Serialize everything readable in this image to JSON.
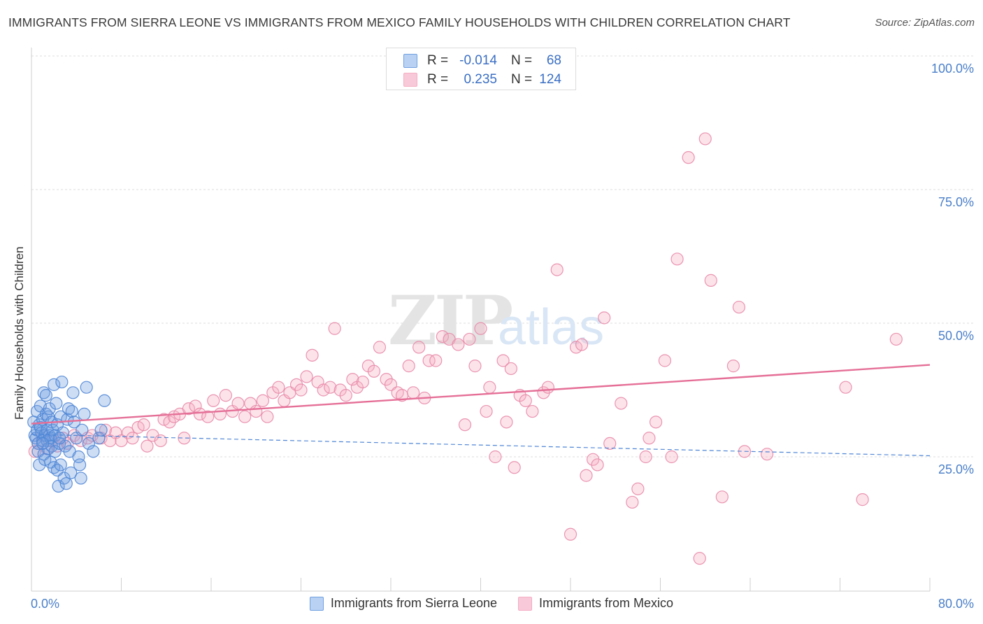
{
  "title": "IMMIGRANTS FROM SIERRA LEONE VS IMMIGRANTS FROM MEXICO FAMILY HOUSEHOLDS WITH CHILDREN CORRELATION CHART",
  "source": "Source: ZipAtlas.com",
  "watermark": {
    "zip": "ZIP",
    "atlas": "atlas"
  },
  "stats": {
    "row1": {
      "r_label": "R =",
      "r_value": "-0.014",
      "n_label": "N =",
      "n_value": "68"
    },
    "row2": {
      "r_label": "R =",
      "r_value": "0.235",
      "n_label": "N =",
      "n_value": "124"
    }
  },
  "chart_data": {
    "type": "scatter",
    "title": "IMMIGRANTS FROM SIERRA LEONE VS IMMIGRANTS FROM MEXICO FAMILY HOUSEHOLDS WITH CHILDREN CORRELATION CHART",
    "xlabel": "",
    "ylabel": "Family Households with Children",
    "xlim": [
      0,
      80
    ],
    "ylim": [
      0,
      105
    ],
    "x_tick_labels": [
      "0.0%",
      "80.0%"
    ],
    "y_ticks": [
      25,
      50,
      75,
      100
    ],
    "y_tick_labels": [
      "25.0%",
      "50.0%",
      "75.0%",
      "100.0%"
    ],
    "grid": true,
    "legend_position": "bottom-center",
    "series": [
      {
        "name": "Immigrants from Sierra Leone",
        "color": "#6f9fe0",
        "stroke": "#4f86d6",
        "trend": {
          "x0": 0,
          "y0": 29.2,
          "x1": 80,
          "y1": 25.2,
          "style": "dashed"
        },
        "points": [
          [
            0.2,
            31.5
          ],
          [
            0.3,
            29
          ],
          [
            0.4,
            28.5
          ],
          [
            0.5,
            33.5
          ],
          [
            0.5,
            30
          ],
          [
            0.6,
            27.5
          ],
          [
            0.6,
            26
          ],
          [
            0.7,
            31
          ],
          [
            0.7,
            23.5
          ],
          [
            0.8,
            34.5
          ],
          [
            0.8,
            30.5
          ],
          [
            0.9,
            29.5
          ],
          [
            1.0,
            28
          ],
          [
            1.0,
            32
          ],
          [
            1.1,
            25.5
          ],
          [
            1.1,
            37
          ],
          [
            1.2,
            24.5
          ],
          [
            1.2,
            29
          ],
          [
            1.3,
            36.5
          ],
          [
            1.3,
            33
          ],
          [
            1.4,
            28
          ],
          [
            1.4,
            30
          ],
          [
            1.5,
            32.5
          ],
          [
            1.5,
            26.5
          ],
          [
            1.6,
            34
          ],
          [
            1.6,
            29
          ],
          [
            1.7,
            24
          ],
          [
            1.7,
            28.5
          ],
          [
            1.8,
            31.5
          ],
          [
            1.8,
            27
          ],
          [
            1.9,
            30
          ],
          [
            2.0,
            23
          ],
          [
            2.0,
            38.5
          ],
          [
            2.1,
            26
          ],
          [
            2.1,
            29
          ],
          [
            2.2,
            35
          ],
          [
            2.3,
            31
          ],
          [
            2.3,
            22.5
          ],
          [
            2.4,
            19.5
          ],
          [
            2.5,
            27.5
          ],
          [
            2.6,
            32.5
          ],
          [
            2.6,
            23.5
          ],
          [
            2.7,
            39
          ],
          [
            2.8,
            29.5
          ],
          [
            2.9,
            21
          ],
          [
            3.0,
            27
          ],
          [
            3.1,
            20
          ],
          [
            3.2,
            32
          ],
          [
            3.3,
            34
          ],
          [
            3.4,
            26
          ],
          [
            3.5,
            22
          ],
          [
            3.6,
            33.5
          ],
          [
            3.7,
            37
          ],
          [
            3.8,
            31.5
          ],
          [
            4.0,
            28.5
          ],
          [
            4.2,
            25
          ],
          [
            4.3,
            23.5
          ],
          [
            4.4,
            21
          ],
          [
            4.5,
            30
          ],
          [
            4.7,
            33
          ],
          [
            4.9,
            38
          ],
          [
            5.1,
            27.5
          ],
          [
            5.5,
            26
          ],
          [
            6.0,
            28.5
          ],
          [
            6.2,
            30
          ],
          [
            6.5,
            35.5
          ],
          [
            1.0,
            27.5
          ],
          [
            2.5,
            28.5
          ]
        ]
      },
      {
        "name": "Immigrants from Mexico",
        "color": "#f5aec4",
        "stroke": "#e88aa8",
        "trend": {
          "x0": 0,
          "y0": 31.2,
          "x1": 80,
          "y1": 42.2,
          "style": "solid"
        },
        "points": [
          [
            0.3,
            26
          ],
          [
            0.6,
            27.5
          ],
          [
            1.0,
            29
          ],
          [
            1.4,
            26.5
          ],
          [
            1.8,
            28
          ],
          [
            2.3,
            27
          ],
          [
            2.8,
            28.5
          ],
          [
            3.2,
            27.5
          ],
          [
            3.8,
            29
          ],
          [
            4.4,
            28
          ],
          [
            5.0,
            28.5
          ],
          [
            5.4,
            29
          ],
          [
            6.2,
            28.5
          ],
          [
            6.6,
            30
          ],
          [
            7.0,
            28
          ],
          [
            7.5,
            29.5
          ],
          [
            8.0,
            28
          ],
          [
            8.6,
            29.5
          ],
          [
            9.0,
            28.5
          ],
          [
            9.5,
            30.5
          ],
          [
            10.0,
            31
          ],
          [
            10.3,
            27
          ],
          [
            10.8,
            29
          ],
          [
            11.5,
            28
          ],
          [
            11.8,
            32
          ],
          [
            12.3,
            31.5
          ],
          [
            12.7,
            32.5
          ],
          [
            13.2,
            33
          ],
          [
            13.6,
            28.5
          ],
          [
            14.0,
            34
          ],
          [
            14.6,
            34.5
          ],
          [
            15.0,
            33
          ],
          [
            15.7,
            32.5
          ],
          [
            16.2,
            35.5
          ],
          [
            16.8,
            33
          ],
          [
            17.3,
            36.5
          ],
          [
            17.9,
            33.5
          ],
          [
            18.4,
            35
          ],
          [
            19.0,
            32.5
          ],
          [
            19.5,
            35
          ],
          [
            20.0,
            33.5
          ],
          [
            20.6,
            35.5
          ],
          [
            21.0,
            32.5
          ],
          [
            21.5,
            37
          ],
          [
            22.0,
            38
          ],
          [
            22.5,
            35.5
          ],
          [
            23.0,
            37
          ],
          [
            23.6,
            38.5
          ],
          [
            24.0,
            37.5
          ],
          [
            24.5,
            40
          ],
          [
            25.0,
            44
          ],
          [
            25.5,
            39
          ],
          [
            26.0,
            37.5
          ],
          [
            26.6,
            38
          ],
          [
            27.0,
            49
          ],
          [
            27.5,
            37.5
          ],
          [
            28.0,
            36.5
          ],
          [
            28.6,
            39.5
          ],
          [
            29.0,
            38
          ],
          [
            29.5,
            39
          ],
          [
            30.0,
            42
          ],
          [
            30.5,
            41
          ],
          [
            31.0,
            45.5
          ],
          [
            31.6,
            39.5
          ],
          [
            32.0,
            38.5
          ],
          [
            32.6,
            37
          ],
          [
            33.0,
            36.5
          ],
          [
            33.6,
            42
          ],
          [
            34.0,
            37
          ],
          [
            34.5,
            45.5
          ],
          [
            35.0,
            36
          ],
          [
            35.4,
            43
          ],
          [
            36.0,
            43
          ],
          [
            36.6,
            47.5
          ],
          [
            37.2,
            47
          ],
          [
            38.0,
            46
          ],
          [
            38.6,
            31
          ],
          [
            39.0,
            47
          ],
          [
            39.5,
            42
          ],
          [
            40.0,
            49
          ],
          [
            40.5,
            33.5
          ],
          [
            40.8,
            38
          ],
          [
            41.3,
            25
          ],
          [
            42.0,
            43
          ],
          [
            42.3,
            31.5
          ],
          [
            42.7,
            41.5
          ],
          [
            43.0,
            23
          ],
          [
            43.5,
            36.5
          ],
          [
            44.0,
            35.5
          ],
          [
            44.6,
            33.5
          ],
          [
            45.6,
            37
          ],
          [
            46.0,
            38
          ],
          [
            46.8,
            60
          ],
          [
            48.0,
            10.5
          ],
          [
            48.5,
            45.5
          ],
          [
            49.0,
            46
          ],
          [
            49.4,
            21.5
          ],
          [
            50.0,
            24.5
          ],
          [
            50.4,
            23.5
          ],
          [
            51.0,
            51
          ],
          [
            51.5,
            27.5
          ],
          [
            52.5,
            35
          ],
          [
            53.5,
            16.5
          ],
          [
            54.0,
            19
          ],
          [
            54.7,
            25
          ],
          [
            55.0,
            28.5
          ],
          [
            55.6,
            31.5
          ],
          [
            56.4,
            43
          ],
          [
            57.0,
            25
          ],
          [
            57.5,
            62
          ],
          [
            58.5,
            81
          ],
          [
            59.5,
            6
          ],
          [
            60.0,
            84.5
          ],
          [
            60.5,
            58
          ],
          [
            61.5,
            17.5
          ],
          [
            62.5,
            42
          ],
          [
            63.0,
            53
          ],
          [
            63.5,
            26
          ],
          [
            65.5,
            25.5
          ],
          [
            72.5,
            38
          ],
          [
            74.0,
            17
          ],
          [
            77.0,
            47
          ]
        ]
      }
    ]
  },
  "legend": {
    "item1": "Immigrants from Sierra Leone",
    "item2": "Immigrants from Mexico"
  }
}
